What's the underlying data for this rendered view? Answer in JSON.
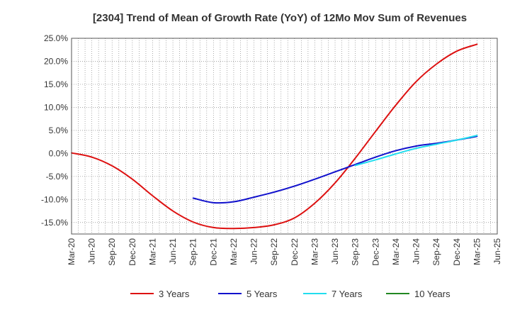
{
  "chart_data": {
    "type": "line",
    "title": "[2304]  Trend of Mean of Growth Rate (YoY) of 12Mo Mov Sum of Revenues",
    "xlabel": "",
    "ylabel": "",
    "ylim": [
      -17.5,
      25.0
    ],
    "y_ticks": [
      25.0,
      20.0,
      15.0,
      10.0,
      5.0,
      0.0,
      -5.0,
      -10.0,
      -15.0
    ],
    "y_tick_labels": [
      "25.0%",
      "20.0%",
      "15.0%",
      "10.0%",
      "5.0%",
      "0.0%",
      "-5.0%",
      "-10.0%",
      "-15.0%"
    ],
    "x_tick_labels": [
      "Mar-20",
      "Jun-20",
      "Sep-20",
      "Dec-20",
      "Mar-21",
      "Jun-21",
      "Sep-21",
      "Dec-21",
      "Mar-22",
      "Jun-22",
      "Sep-22",
      "Dec-22",
      "Mar-23",
      "Jun-23",
      "Sep-23",
      "Dec-23",
      "Mar-24",
      "Jun-24",
      "Sep-24",
      "Dec-24",
      "Mar-25",
      "Jun-25"
    ],
    "grid": true,
    "legend_position": "bottom",
    "series": [
      {
        "name": "3 Years",
        "color": "#dd1111",
        "x_index": [
          0,
          1,
          2,
          3,
          4,
          5,
          6,
          7,
          8,
          9,
          10,
          11,
          12,
          13,
          14,
          15,
          16,
          17,
          18,
          19,
          20
        ],
        "values": [
          0.1,
          -0.8,
          -2.7,
          -5.6,
          -9.2,
          -12.5,
          -14.9,
          -16.1,
          -16.3,
          -16.1,
          -15.5,
          -14.0,
          -10.8,
          -6.4,
          -1.0,
          4.8,
          10.5,
          15.6,
          19.4,
          22.2,
          23.7
        ]
      },
      {
        "name": "5 Years",
        "color": "#1111cc",
        "x_index": [
          6,
          7,
          8,
          9,
          10,
          11,
          12,
          13,
          14,
          15,
          16,
          17,
          18,
          19,
          20
        ],
        "values": [
          -9.7,
          -10.7,
          -10.5,
          -9.5,
          -8.4,
          -7.1,
          -5.6,
          -4.0,
          -2.4,
          -0.8,
          0.6,
          1.6,
          2.2,
          2.9,
          3.7
        ]
      },
      {
        "name": "7 Years",
        "color": "#22ddee",
        "x_index": [
          14,
          15,
          16,
          17,
          18,
          19,
          20
        ],
        "values": [
          -2.6,
          -1.4,
          -0.1,
          1.1,
          2.0,
          2.9,
          3.9
        ]
      },
      {
        "name": "10 Years",
        "color": "#228822",
        "x_index": [],
        "values": []
      }
    ]
  }
}
